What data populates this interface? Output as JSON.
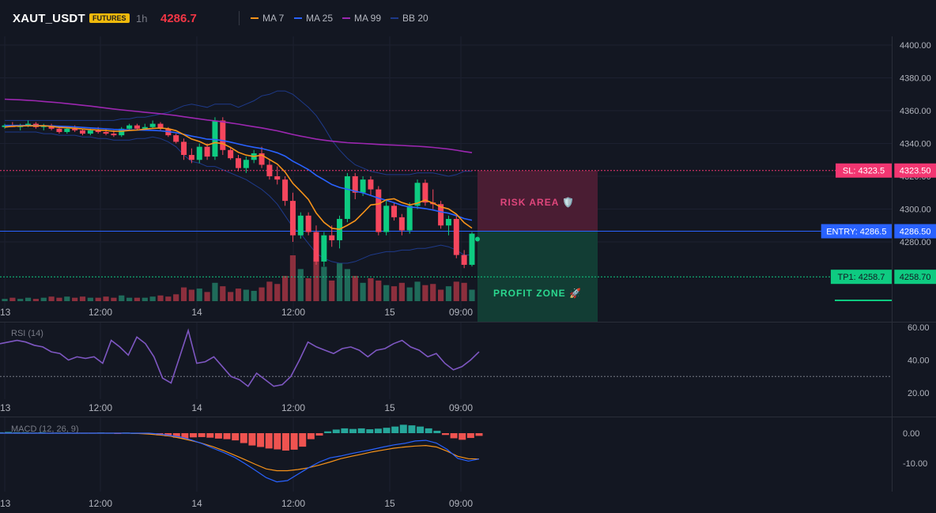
{
  "header": {
    "symbol": "XAUT_USDT",
    "badge": "FUTURES",
    "interval": "1h",
    "price": "4286.7"
  },
  "legend": [
    {
      "label": "MA 7",
      "color": "#f7931a"
    },
    {
      "label": "MA 25",
      "color": "#2962ff"
    },
    {
      "label": "MA 99",
      "color": "#9c27b0"
    },
    {
      "label": "BB 20",
      "color": "#1e3a8a"
    }
  ],
  "colors": {
    "up": "#0ecb81",
    "down": "#f6465d",
    "bg": "#131722"
  },
  "levels": {
    "sl": {
      "tag": "SL: 4323.5",
      "price_label": "4323.50",
      "value": 4323.5
    },
    "entry": {
      "tag": "ENTRY: 4286.5",
      "price_label": "4286.50",
      "value": 4286.5
    },
    "tp1": {
      "tag": "TP1: 4258.7",
      "price_label": "4258.70",
      "value": 4258.7
    }
  },
  "zones": {
    "risk_label": "RISK AREA 🛡️",
    "profit_label": "PROFIT ZONE 🚀"
  },
  "rsi_title": "RSI (14)",
  "macd_title": "MACD (12, 26, 9)",
  "chart_data": [
    {
      "type": "candlestick",
      "title": "XAUT_USDT",
      "y_ticks": [
        "4400.00",
        "4380.00",
        "4360.00",
        "4340.00",
        "4320.00",
        "4300.00",
        "4280.00"
      ],
      "ylim": [
        4260,
        4405
      ],
      "x_ticks": [
        "13",
        "12:00",
        "14",
        "12:00",
        "15",
        "09:00"
      ],
      "candles": [
        [
          4350,
          4352,
          4349,
          4351
        ],
        [
          4351,
          4353,
          4350,
          4350
        ],
        [
          4350,
          4352,
          4348,
          4351
        ],
        [
          4351,
          4354,
          4350,
          4352
        ],
        [
          4352,
          4353,
          4349,
          4350
        ],
        [
          4350,
          4352,
          4348,
          4351
        ],
        [
          4351,
          4352,
          4348,
          4349
        ],
        [
          4349,
          4350,
          4346,
          4347
        ],
        [
          4347,
          4350,
          4346,
          4349
        ],
        [
          4349,
          4351,
          4347,
          4348
        ],
        [
          4348,
          4349,
          4345,
          4346
        ],
        [
          4346,
          4349,
          4345,
          4348
        ],
        [
          4348,
          4350,
          4346,
          4347
        ],
        [
          4347,
          4349,
          4345,
          4346
        ],
        [
          4346,
          4348,
          4344,
          4345
        ],
        [
          4345,
          4350,
          4344,
          4349
        ],
        [
          4349,
          4352,
          4348,
          4351
        ],
        [
          4351,
          4352,
          4348,
          4349
        ],
        [
          4349,
          4352,
          4348,
          4350
        ],
        [
          4350,
          4354,
          4349,
          4352
        ],
        [
          4352,
          4353,
          4348,
          4349
        ],
        [
          4349,
          4350,
          4344,
          4345
        ],
        [
          4345,
          4346,
          4340,
          4341
        ],
        [
          4341,
          4343,
          4330,
          4333
        ],
        [
          4333,
          4337,
          4328,
          4330
        ],
        [
          4330,
          4340,
          4328,
          4338
        ],
        [
          4338,
          4340,
          4330,
          4332
        ],
        [
          4332,
          4356,
          4330,
          4354
        ],
        [
          4354,
          4356,
          4333,
          4336
        ],
        [
          4336,
          4338,
          4330,
          4331
        ],
        [
          4331,
          4333,
          4323,
          4325
        ],
        [
          4325,
          4332,
          4322,
          4330
        ],
        [
          4330,
          4336,
          4328,
          4334
        ],
        [
          4334,
          4338,
          4325,
          4327
        ],
        [
          4327,
          4330,
          4318,
          4320
        ],
        [
          4320,
          4326,
          4315,
          4318
        ],
        [
          4318,
          4320,
          4302,
          4305
        ],
        [
          4305,
          4310,
          4280,
          4284
        ],
        [
          4284,
          4298,
          4282,
          4296
        ],
        [
          4296,
          4298,
          4284,
          4286
        ],
        [
          4286,
          4290,
          4266,
          4268
        ],
        [
          4268,
          4286,
          4265,
          4284
        ],
        [
          4284,
          4290,
          4277,
          4281
        ],
        [
          4281,
          4296,
          4276,
          4294
        ],
        [
          4294,
          4322,
          4292,
          4320
        ],
        [
          4320,
          4322,
          4306,
          4310
        ],
        [
          4310,
          4320,
          4308,
          4318
        ],
        [
          4318,
          4320,
          4308,
          4312
        ],
        [
          4312,
          4314,
          4284,
          4286
        ],
        [
          4286,
          4305,
          4284,
          4302
        ],
        [
          4302,
          4304,
          4293,
          4295
        ],
        [
          4295,
          4297,
          4284,
          4287
        ],
        [
          4287,
          4304,
          4285,
          4302
        ],
        [
          4302,
          4318,
          4300,
          4316
        ],
        [
          4316,
          4318,
          4302,
          4304
        ],
        [
          4304,
          4312,
          4300,
          4303
        ],
        [
          4303,
          4305,
          4288,
          4290
        ],
        [
          4290,
          4296,
          4284,
          4294
        ],
        [
          4294,
          4296,
          4270,
          4272
        ],
        [
          4272,
          4275,
          4264,
          4266
        ],
        [
          4266,
          4286,
          4265,
          4285
        ]
      ],
      "volume": [
        2,
        3,
        2,
        3,
        2,
        3,
        4,
        3,
        4,
        3,
        4,
        3,
        3,
        4,
        3,
        5,
        3,
        3,
        3,
        4,
        5,
        4,
        6,
        12,
        10,
        11,
        8,
        16,
        13,
        8,
        11,
        10,
        9,
        12,
        17,
        15,
        22,
        40,
        28,
        20,
        38,
        30,
        18,
        33,
        28,
        22,
        16,
        20,
        18,
        14,
        13,
        16,
        12,
        17,
        14,
        15,
        10,
        13,
        17,
        16,
        10
      ],
      "ma7": [
        4350,
        4350.5,
        4350.6,
        4350.8,
        4350.7,
        4350.8,
        4350.4,
        4349.8,
        4349.6,
        4349.3,
        4348.8,
        4348.5,
        4348.2,
        4347.9,
        4347.4,
        4347.5,
        4347.9,
        4348.2,
        4348.7,
        4349.2,
        4349.4,
        4349,
        4347.8,
        4345.4,
        4342.7,
        4341.2,
        4339,
        4340.5,
        4339.9,
        4337.6,
        4334.6,
        4332.9,
        4332.1,
        4332.9,
        4330.2,
        4327.4,
        4322.6,
        4315.7,
        4310.9,
        4305.9,
        4297.6,
        4291.9,
        4288.3,
        4287.7,
        4290.1,
        4292.9,
        4297.6,
        4302.5,
        4303.1,
        4305.7,
        4306.3,
        4304,
        4302.5,
        4303.6,
        4305.5,
        4303.6,
        4301.3,
        4300.1,
        4296.9,
        4291.7,
        4288.4
      ],
      "ma25": [
        4351,
        4351,
        4351,
        4351,
        4350.9,
        4350.8,
        4350.7,
        4350.5,
        4350.3,
        4350.1,
        4349.8,
        4349.5,
        4349.2,
        4348.9,
        4348.6,
        4348.4,
        4348.3,
        4348.2,
        4348.1,
        4348,
        4347.7,
        4347.3,
        4346.6,
        4345.6,
        4344.5,
        4343.6,
        4342.6,
        4342.4,
        4341.8,
        4340.8,
        4339.7,
        4338.6,
        4337.7,
        4336.9,
        4335.7,
        4334.3,
        4332.3,
        4329.2,
        4326.7,
        4324.1,
        4320.6,
        4317.9,
        4315,
        4313.2,
        4312.1,
        4310.9,
        4309.9,
        4308.3,
        4306.7,
        4305.4,
        4303.9,
        4302.3,
        4301.2,
        4300.9,
        4300.3,
        4299.4,
        4298.3,
        4297.5,
        4296,
        4294.2,
        4293.2
      ],
      "ma99": [
        4367,
        4366.8,
        4366.6,
        4366.3,
        4366,
        4365.6,
        4365.2,
        4364.8,
        4364.3,
        4363.8,
        4363.3,
        4362.8,
        4362.2,
        4361.6,
        4361,
        4360.5,
        4360,
        4359.5,
        4359,
        4358.6,
        4358.1,
        4357.6,
        4357,
        4356.3,
        4355.6,
        4355,
        4354.3,
        4353.8,
        4353.2,
        4352.5,
        4351.8,
        4351,
        4350.2,
        4349.5,
        4348.6,
        4347.7,
        4346.6,
        4345.5,
        4344.5,
        4343.6,
        4342.7,
        4342,
        4341.4,
        4340.9,
        4340.5,
        4340.2,
        4340,
        4339.7,
        4339.4,
        4339.2,
        4339,
        4338.8,
        4338.5,
        4338.3,
        4338,
        4337.6,
        4337.1,
        4336.6,
        4335.9,
        4335.1,
        4334.4
      ],
      "bb_upper": [
        4354,
        4354,
        4354,
        4354,
        4354,
        4354,
        4354,
        4354,
        4354,
        4354,
        4354,
        4354,
        4354,
        4354,
        4354,
        4355,
        4355,
        4356,
        4356,
        4357,
        4358,
        4359,
        4361,
        4363,
        4364,
        4363,
        4362,
        4364,
        4364,
        4364,
        4362,
        4364,
        4366,
        4369,
        4370,
        4372,
        4372,
        4370,
        4366,
        4362,
        4357,
        4350,
        4342,
        4336,
        4331,
        4327,
        4325,
        4323,
        4322,
        4321,
        4321,
        4321,
        4321,
        4322,
        4322,
        4322,
        4321,
        4320,
        4321,
        4323,
        4323
      ],
      "bb_lower": [
        4347,
        4347,
        4347,
        4347,
        4347,
        4346,
        4346,
        4345,
        4345,
        4345,
        4344,
        4344,
        4343,
        4343,
        4342,
        4342,
        4342,
        4343,
        4343,
        4344,
        4343,
        4341,
        4338,
        4333,
        4329,
        4328,
        4326,
        4326,
        4324,
        4322,
        4320,
        4318,
        4315,
        4312,
        4308,
        4303,
        4296,
        4289,
        4285,
        4279,
        4273,
        4270,
        4268,
        4267,
        4267,
        4268,
        4270,
        4272,
        4273,
        4274,
        4274,
        4275,
        4275,
        4276,
        4276,
        4277,
        4278,
        4277,
        4275,
        4272,
        4272
      ]
    },
    {
      "type": "line",
      "title": "RSI (14)",
      "y_ticks": [
        "60.00",
        "40.00",
        "20.00"
      ],
      "ylim": [
        18,
        65
      ],
      "reference_line": 30,
      "x_ticks": [
        "13",
        "12:00",
        "14",
        "12:00",
        "15",
        "09:00"
      ],
      "values": [
        50,
        51,
        52,
        51,
        49,
        48,
        45,
        44,
        40,
        42,
        41,
        42,
        38,
        52,
        48,
        43,
        54,
        50,
        42,
        29,
        26,
        42,
        58,
        38,
        39,
        42,
        36,
        30,
        28,
        24,
        32,
        28,
        24,
        25,
        30,
        40,
        51,
        48,
        46,
        44,
        47,
        48,
        46,
        42,
        46,
        47,
        50,
        52,
        48,
        46,
        42,
        44,
        38,
        34,
        36,
        40,
        45
      ]
    },
    {
      "type": "bar",
      "title": "MACD (12, 26, 9)",
      "y_ticks": [
        "0.00",
        "-10.00"
      ],
      "ylim": [
        -20,
        4
      ],
      "x_ticks": [
        "13",
        "12:00",
        "14",
        "12:00",
        "15",
        "09:00"
      ],
      "histogram": [
        0.3,
        0.4,
        0.3,
        0.3,
        0.2,
        0.3,
        0.1,
        0.2,
        0.2,
        0.1,
        0.1,
        0.1,
        0.2,
        0.1,
        -0.1,
        0.2,
        0,
        -0.2,
        -0.4,
        -0.7,
        -1,
        -1.5,
        -1.8,
        -1.4,
        -1.3,
        -1.5,
        -1.8,
        -2,
        -2.4,
        -3.3,
        -4.1,
        -4.6,
        -5.1,
        -5.4,
        -5.8,
        -5.5,
        -4.5,
        -2,
        -0.8,
        0.6,
        1.2,
        1.6,
        1.4,
        1.6,
        1.3,
        1.5,
        1.8,
        2.2,
        2.8,
        2.6,
        2.2,
        1.6,
        0.8,
        -0.6,
        -1.7,
        -2.2,
        -1.6,
        -0.9
      ],
      "macd": [
        0,
        0,
        0,
        0,
        0,
        0,
        0,
        0,
        0,
        0,
        0,
        0,
        0,
        0,
        0,
        -0.3,
        -0.8,
        -1.3,
        -2.3,
        -3.5,
        -5,
        -6.4,
        -8,
        -10.1,
        -12.4,
        -14.8,
        -16.2,
        -15.8,
        -13.6,
        -11.5,
        -9.6,
        -8.2,
        -7.6,
        -6.8,
        -6.1,
        -5.4,
        -4.6,
        -3.9,
        -3.4,
        -2.6,
        -2.4,
        -3.3,
        -5.4,
        -8.4,
        -9.3,
        -8.6
      ],
      "signal": [
        0,
        0,
        0,
        0,
        0,
        0,
        0,
        0,
        0,
        0,
        0,
        0,
        0,
        -0.1,
        -0.3,
        -0.6,
        -1,
        -1.7,
        -2.5,
        -3.4,
        -4.5,
        -5.8,
        -7.3,
        -8.8,
        -10.4,
        -11.9,
        -12.5,
        -12.5,
        -12.1,
        -11.5,
        -10.6,
        -9.6,
        -8.5,
        -7.7,
        -7,
        -6.2,
        -5.6,
        -5,
        -4.6,
        -4.3,
        -4.1,
        -4.6,
        -6,
        -7.7,
        -8.5,
        -8.6
      ]
    }
  ]
}
